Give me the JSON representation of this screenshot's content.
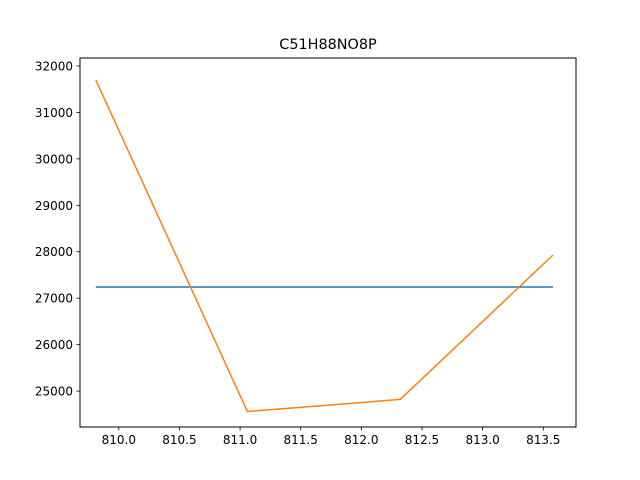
{
  "chart_data": {
    "type": "line",
    "title": "C51H88NO8P",
    "xlabel": "",
    "ylabel": "",
    "xlim": [
      809.68,
      813.77
    ],
    "ylim": [
      24226,
      32172
    ],
    "xticks": [
      810.0,
      810.5,
      811.0,
      811.5,
      812.0,
      812.5,
      813.0,
      813.5
    ],
    "xtick_labels": [
      "810.0",
      "810.5",
      "811.0",
      "811.5",
      "812.0",
      "812.5",
      "813.0",
      "813.5"
    ],
    "yticks": [
      25000,
      26000,
      27000,
      28000,
      29000,
      30000,
      31000,
      32000
    ],
    "ytick_labels": [
      "25000",
      "26000",
      "27000",
      "28000",
      "29000",
      "30000",
      "31000",
      "32000"
    ],
    "grid": false,
    "series": [
      {
        "color": "#1f77b4",
        "x": [
          809.81,
          813.58
        ],
        "y": [
          27240,
          27240
        ]
      },
      {
        "color": "#ff7f0e",
        "x": [
          809.81,
          811.06,
          812.32,
          813.58
        ],
        "y": [
          31700,
          24560,
          24820,
          27930
        ]
      }
    ]
  }
}
